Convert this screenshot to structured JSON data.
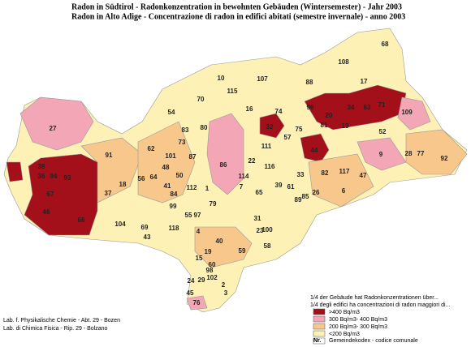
{
  "header": {
    "title_de": "Radon in Südtirol - Radonkonzentration in bewohnten Gebäuden (Wintersemester) - Jahr 2003",
    "title_it": "Radon in Alto Adige - Concentrazione di radon in edifici abitati (semestre invernale) - anno 2003"
  },
  "legend": {
    "title_de": "1/4 der Gebäude hat Radonkonzentrationen über...",
    "title_it": "1/4 degli edifici ha concentrazioni di radon maggiori di...",
    "items": [
      {
        "label": ">400 Bq/m3",
        "color": "#a3101a"
      },
      {
        "label": "300 Bq/m3- 400 Bq/m3",
        "color": "#f2a6b6"
      },
      {
        "label": "200 Bq/m3- 300 Bq/m3",
        "color": "#f8c78c"
      },
      {
        "label": "<200 Bq/m3",
        "color": "#fdf1b5"
      }
    ],
    "code_key": "Nr.",
    "code_text": "Gemeindekodex - codice comunale"
  },
  "footer": {
    "line1": "Lab. f. Physikalische Chemie - Abt. 29 - Bozen",
    "line2": "Lab. di Chimica Fisica - Rip. 29 - Bolzano"
  },
  "municipalities": [
    "68",
    "108",
    "88",
    "17",
    "107",
    "10",
    "115",
    "70",
    "16",
    "74",
    "96",
    "20",
    "34",
    "63",
    "71",
    "109",
    "54",
    "32",
    "75",
    "81",
    "13",
    "52",
    "27",
    "83",
    "80",
    "111",
    "57",
    "44",
    "9",
    "28",
    "77",
    "92",
    "73",
    "101",
    "87",
    "91",
    "62",
    "86",
    "22",
    "116",
    "117",
    "47",
    "82",
    "33",
    "38",
    "36",
    "94",
    "93",
    "56",
    "64",
    "48",
    "41",
    "50",
    "114",
    "18",
    "37",
    "112",
    "39",
    "61",
    "85",
    "7",
    "65",
    "89",
    "67",
    "84",
    "1",
    "26",
    "6",
    "99",
    "55",
    "97",
    "79",
    "104",
    "46",
    "66",
    "69",
    "43",
    "118",
    "31",
    "23",
    "100",
    "4",
    "40",
    "58",
    "59",
    "19",
    "15",
    "60",
    "98",
    "102",
    "24",
    "29",
    "45",
    "3",
    "76",
    "2"
  ]
}
